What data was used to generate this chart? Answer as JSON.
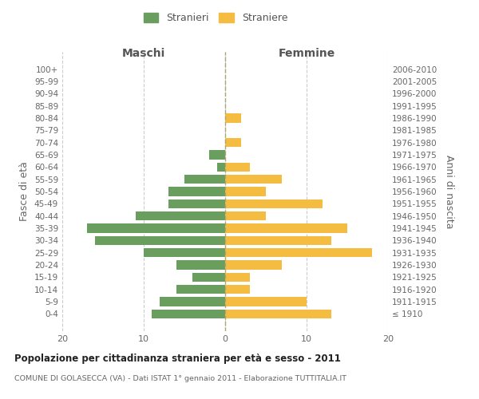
{
  "age_groups": [
    "100+",
    "95-99",
    "90-94",
    "85-89",
    "80-84",
    "75-79",
    "70-74",
    "65-69",
    "60-64",
    "55-59",
    "50-54",
    "45-49",
    "40-44",
    "35-39",
    "30-34",
    "25-29",
    "20-24",
    "15-19",
    "10-14",
    "5-9",
    "0-4"
  ],
  "birth_years": [
    "≤ 1910",
    "1911-1915",
    "1916-1920",
    "1921-1925",
    "1926-1930",
    "1931-1935",
    "1936-1940",
    "1941-1945",
    "1946-1950",
    "1951-1955",
    "1956-1960",
    "1961-1965",
    "1966-1970",
    "1971-1975",
    "1976-1980",
    "1981-1985",
    "1986-1990",
    "1991-1995",
    "1996-2000",
    "2001-2005",
    "2006-2010"
  ],
  "maschi": [
    0,
    0,
    0,
    0,
    0,
    0,
    0,
    2,
    1,
    5,
    7,
    7,
    11,
    17,
    16,
    10,
    6,
    4,
    6,
    8,
    9
  ],
  "femmine": [
    0,
    0,
    0,
    0,
    2,
    0,
    2,
    0,
    3,
    7,
    5,
    12,
    5,
    15,
    13,
    18,
    7,
    3,
    3,
    10,
    13
  ],
  "color_maschi": "#6a9e5e",
  "color_femmine": "#f5bc42",
  "background_color": "#ffffff",
  "grid_color": "#cccccc",
  "title": "Popolazione per cittadinanza straniera per età e sesso - 2011",
  "subtitle": "COMUNE DI GOLASECCA (VA) - Dati ISTAT 1° gennaio 2011 - Elaborazione TUTTITALIA.IT",
  "xlabel_left": "Maschi",
  "xlabel_right": "Femmine",
  "ylabel_left": "Fasce di età",
  "ylabel_right": "Anni di nascita",
  "legend_maschi": "Stranieri",
  "legend_femmine": "Straniere",
  "xlim": 20
}
